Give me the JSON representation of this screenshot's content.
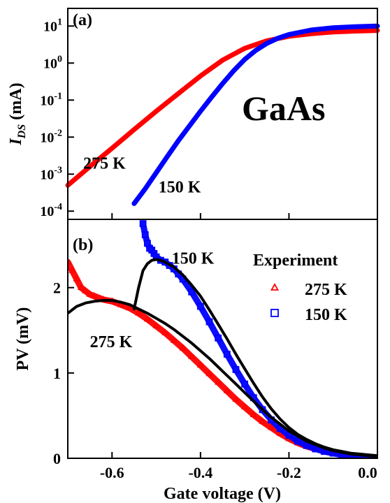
{
  "chart_data": [
    {
      "id": "a",
      "type": "line",
      "panel_label": "(a)",
      "title": "",
      "xlabel": "",
      "ylabel_main": "I",
      "ylabel_sub": "DS",
      "ylabel_unit": " (mA)",
      "annotation": "GaAs",
      "y_scale": "log",
      "xlim": [
        -0.7,
        0.0
      ],
      "ylim": [
        6e-05,
        30
      ],
      "x_ticks": [
        -0.6,
        -0.4,
        -0.2,
        0.0
      ],
      "y_ticks": [
        {
          "value": 0.0001,
          "base": "10",
          "exp": "-4"
        },
        {
          "value": 0.001,
          "base": "10",
          "exp": "-3"
        },
        {
          "value": 0.01,
          "base": "10",
          "exp": "-2"
        },
        {
          "value": 0.1,
          "base": "10",
          "exp": "-1"
        },
        {
          "value": 1,
          "base": "10",
          "exp": "0"
        },
        {
          "value": 10,
          "base": "10",
          "exp": "1"
        }
      ],
      "grid": false,
      "series": [
        {
          "label": "275 K",
          "color": "#ff0000",
          "label_pos": [
            -0.665,
            0.0014
          ],
          "x": [
            -0.7,
            -0.65,
            -0.6,
            -0.55,
            -0.5,
            -0.45,
            -0.4,
            -0.35,
            -0.3,
            -0.25,
            -0.2,
            -0.15,
            -0.1,
            -0.05,
            0.0
          ],
          "y": [
            0.0005,
            0.0016,
            0.005,
            0.016,
            0.05,
            0.15,
            0.45,
            1.2,
            2.5,
            4.0,
            5.3,
            6.2,
            6.9,
            7.3,
            7.6
          ]
        },
        {
          "label": "150 K",
          "color": "#0000ff",
          "label_pos": [
            -0.495,
            0.00032
          ],
          "x": [
            -0.55,
            -0.525,
            -0.5,
            -0.475,
            -0.45,
            -0.425,
            -0.4,
            -0.375,
            -0.35,
            -0.325,
            -0.3,
            -0.275,
            -0.25,
            -0.225,
            -0.2,
            -0.15,
            -0.1,
            -0.05,
            0.0
          ],
          "y": [
            0.00016,
            0.0004,
            0.0011,
            0.003,
            0.008,
            0.02,
            0.05,
            0.12,
            0.28,
            0.62,
            1.25,
            2.2,
            3.4,
            4.7,
            5.9,
            7.8,
            9.0,
            9.6,
            10.0
          ]
        }
      ]
    },
    {
      "id": "b",
      "type": "scatter",
      "panel_label": "(b)",
      "title": "",
      "xlabel": "Gate voltage (V)",
      "ylabel": "PV (mV)",
      "y_scale": "linear",
      "xlim": [
        -0.7,
        0.0
      ],
      "ylim": [
        0,
        2.8
      ],
      "x_ticks": [
        -0.6,
        -0.4,
        -0.2,
        0.0
      ],
      "x_tick_labels": [
        "-0.6",
        "-0.4",
        "-0.2",
        "0.0"
      ],
      "y_ticks": [
        0,
        1,
        2
      ],
      "y_tick_labels": [
        "0",
        "1",
        "2"
      ],
      "grid": false,
      "legend_title": "Experiment",
      "legend_position": "top-right",
      "series": [
        {
          "name": "275 K",
          "marker": "triangle",
          "color": "#ff0000",
          "x": [
            -0.7,
            -0.69,
            -0.68,
            -0.67,
            -0.66,
            -0.65,
            -0.64,
            -0.62,
            -0.6,
            -0.58,
            -0.56,
            -0.54,
            -0.52,
            -0.5,
            -0.48,
            -0.46,
            -0.44,
            -0.42,
            -0.4,
            -0.38,
            -0.36,
            -0.34,
            -0.32,
            -0.3,
            -0.28,
            -0.26,
            -0.24,
            -0.22,
            -0.2,
            -0.18,
            -0.16,
            -0.14,
            -0.12,
            -0.1,
            -0.08,
            -0.06,
            -0.04,
            -0.02,
            0.0
          ],
          "y": [
            2.3,
            2.2,
            2.1,
            2.0,
            1.96,
            1.92,
            1.9,
            1.86,
            1.84,
            1.8,
            1.76,
            1.7,
            1.63,
            1.55,
            1.47,
            1.38,
            1.29,
            1.19,
            1.09,
            0.99,
            0.89,
            0.79,
            0.69,
            0.6,
            0.51,
            0.43,
            0.36,
            0.29,
            0.23,
            0.18,
            0.14,
            0.11,
            0.08,
            0.06,
            0.04,
            0.03,
            0.02,
            0.01,
            0.005
          ]
        },
        {
          "name": "150 K",
          "marker": "square",
          "color": "#0000ff",
          "x": [
            -0.53,
            -0.525,
            -0.52,
            -0.515,
            -0.51,
            -0.505,
            -0.5,
            -0.49,
            -0.48,
            -0.47,
            -0.46,
            -0.45,
            -0.44,
            -0.42,
            -0.4,
            -0.38,
            -0.36,
            -0.34,
            -0.32,
            -0.3,
            -0.28,
            -0.26,
            -0.24,
            -0.22,
            -0.2,
            -0.18,
            -0.16,
            -0.14,
            -0.12,
            -0.1,
            -0.08,
            -0.06,
            -0.04,
            -0.02,
            0.0
          ],
          "y": [
            2.75,
            2.62,
            2.52,
            2.46,
            2.44,
            2.4,
            2.36,
            2.32,
            2.3,
            2.26,
            2.22,
            2.16,
            2.1,
            1.95,
            1.78,
            1.6,
            1.41,
            1.22,
            1.04,
            0.87,
            0.71,
            0.57,
            0.45,
            0.35,
            0.27,
            0.2,
            0.15,
            0.11,
            0.08,
            0.06,
            0.04,
            0.03,
            0.02,
            0.01,
            0.005
          ]
        },
        {
          "label": "275 K",
          "line": true,
          "color": "#000000",
          "label_pos": [
            -0.65,
            1.3
          ],
          "x": [
            -0.7,
            -0.68,
            -0.66,
            -0.64,
            -0.62,
            -0.6,
            -0.58,
            -0.56,
            -0.54,
            -0.52,
            -0.5,
            -0.48,
            -0.46,
            -0.44,
            -0.42,
            -0.4,
            -0.38,
            -0.36,
            -0.34,
            -0.32,
            -0.3,
            -0.28,
            -0.26,
            -0.24,
            -0.22,
            -0.2,
            -0.18,
            -0.16,
            -0.14,
            -0.12,
            -0.1,
            -0.08,
            -0.06,
            -0.04,
            -0.02,
            0.0
          ],
          "y": [
            1.7,
            1.78,
            1.82,
            1.84,
            1.85,
            1.85,
            1.83,
            1.8,
            1.75,
            1.7,
            1.64,
            1.58,
            1.51,
            1.43,
            1.35,
            1.26,
            1.17,
            1.07,
            0.97,
            0.87,
            0.77,
            0.67,
            0.57,
            0.48,
            0.4,
            0.32,
            0.26,
            0.2,
            0.16,
            0.12,
            0.09,
            0.07,
            0.05,
            0.04,
            0.03,
            0.02
          ]
        },
        {
          "label": "150 K",
          "line": true,
          "color": "#000000",
          "label_pos": [
            -0.465,
            2.28
          ],
          "x": [
            -0.55,
            -0.54,
            -0.53,
            -0.52,
            -0.51,
            -0.5,
            -0.49,
            -0.48,
            -0.46,
            -0.44,
            -0.42,
            -0.4,
            -0.38,
            -0.36,
            -0.34,
            -0.32,
            -0.3,
            -0.28,
            -0.26,
            -0.24,
            -0.22,
            -0.2,
            -0.18,
            -0.16,
            -0.14,
            -0.12,
            -0.1,
            -0.08,
            -0.06,
            -0.04,
            -0.02,
            0.0
          ],
          "y": [
            1.75,
            2.0,
            2.2,
            2.28,
            2.32,
            2.33,
            2.32,
            2.3,
            2.24,
            2.15,
            2.03,
            1.9,
            1.74,
            1.57,
            1.4,
            1.22,
            1.05,
            0.88,
            0.72,
            0.58,
            0.46,
            0.36,
            0.28,
            0.22,
            0.17,
            0.13,
            0.1,
            0.08,
            0.06,
            0.05,
            0.04,
            0.03
          ]
        }
      ]
    }
  ]
}
